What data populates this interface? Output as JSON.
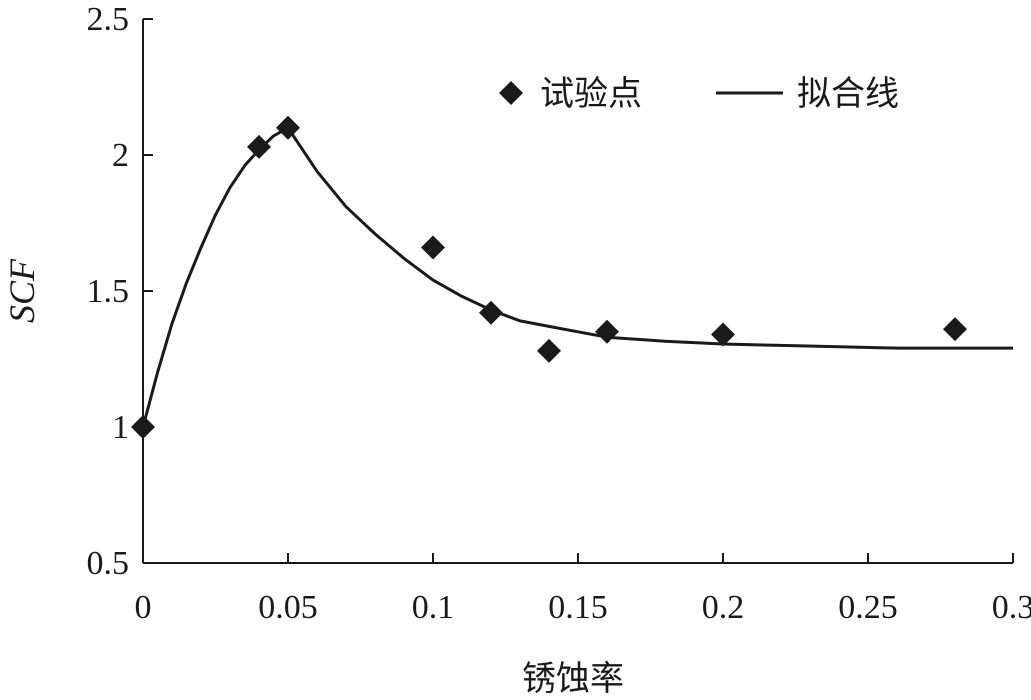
{
  "chart_data": {
    "type": "scatter",
    "xlabel": "锈蚀率",
    "ylabel": "SCF",
    "xlim": [
      0,
      0.3
    ],
    "ylim": [
      0.5,
      2.5
    ],
    "xticks": [
      "0",
      "0.05",
      "0.1",
      "0.15",
      "0.2",
      "0.25",
      "0.3"
    ],
    "yticks": [
      "0.5",
      "1",
      "1.5",
      "2",
      "2.5"
    ],
    "grid": false,
    "legend": "top-right",
    "series": [
      {
        "name": "试验点",
        "kind": "scatter",
        "marker": "diamond",
        "color": "#1a1a1a",
        "x": [
          0,
          0.04,
          0.05,
          0.1,
          0.12,
          0.14,
          0.16,
          0.2,
          0.28
        ],
        "y": [
          1.0,
          2.03,
          2.1,
          1.66,
          1.42,
          1.28,
          1.35,
          1.34,
          1.36
        ]
      },
      {
        "name": "拟合线",
        "kind": "line",
        "color": "#1a1a1a",
        "x": [
          0,
          0.005,
          0.01,
          0.015,
          0.02,
          0.025,
          0.03,
          0.035,
          0.04,
          0.045,
          0.05,
          0.06,
          0.07,
          0.08,
          0.09,
          0.1,
          0.11,
          0.12,
          0.13,
          0.14,
          0.15,
          0.16,
          0.18,
          0.2,
          0.22,
          0.24,
          0.26,
          0.28,
          0.3
        ],
        "y": [
          1.0,
          1.2,
          1.38,
          1.53,
          1.66,
          1.78,
          1.88,
          1.96,
          2.02,
          2.07,
          2.1,
          1.94,
          1.81,
          1.71,
          1.62,
          1.54,
          1.48,
          1.43,
          1.39,
          1.37,
          1.35,
          1.33,
          1.315,
          1.305,
          1.3,
          1.295,
          1.29,
          1.29,
          1.29
        ]
      }
    ]
  }
}
